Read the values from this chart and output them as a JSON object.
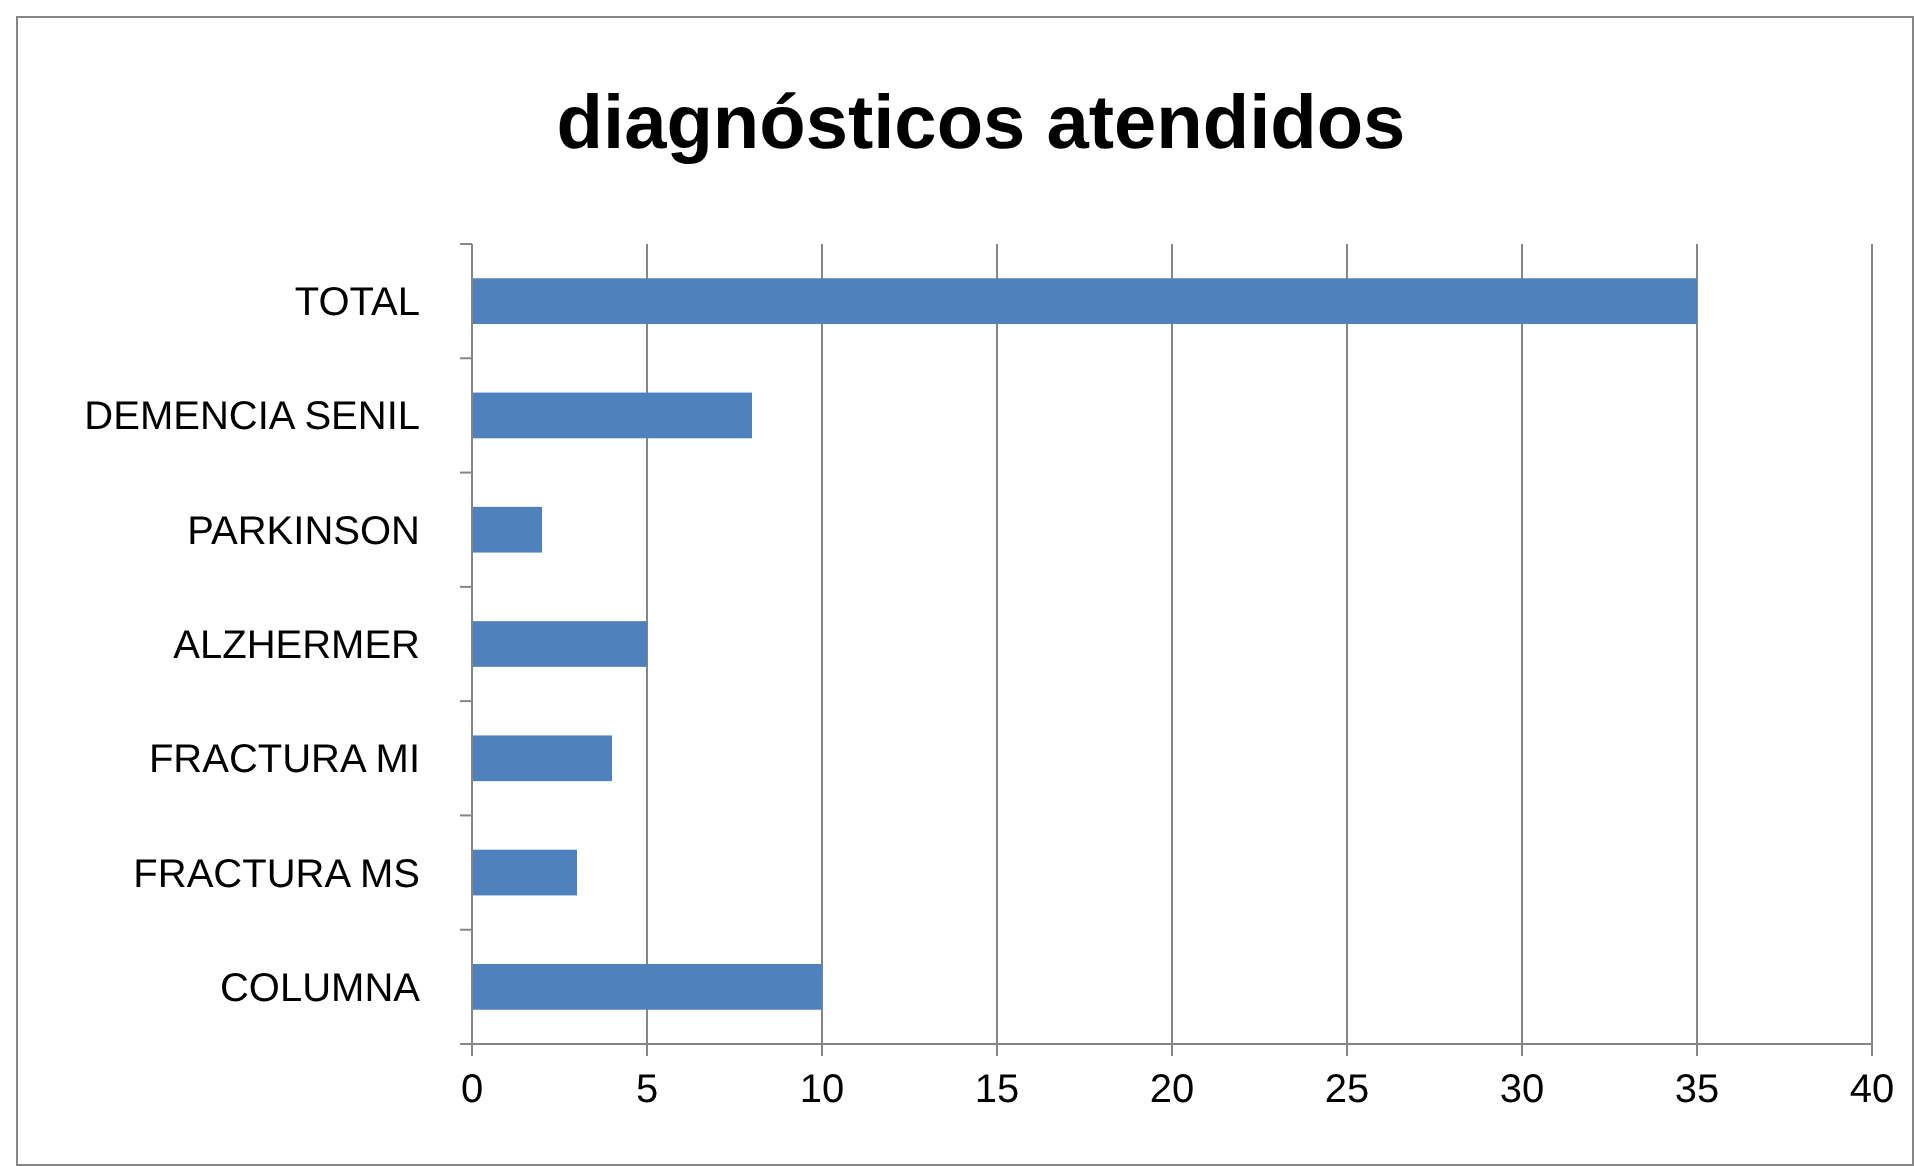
{
  "chart_data": {
    "type": "bar",
    "orientation": "horizontal",
    "title": "diagnósticos atendidos",
    "categories": [
      "TOTAL",
      "DEMENCIA SENIL",
      "PARKINSON",
      "ALZHERMER",
      "FRACTURA MI",
      "FRACTURA MS",
      "COLUMNA"
    ],
    "values": [
      35,
      8,
      2,
      5,
      4,
      3,
      10
    ],
    "color": "#4f81bd",
    "xlim": [
      0,
      40
    ],
    "xticks": [
      0,
      5,
      10,
      15,
      20,
      25,
      30,
      35,
      40
    ],
    "grid": "x"
  }
}
